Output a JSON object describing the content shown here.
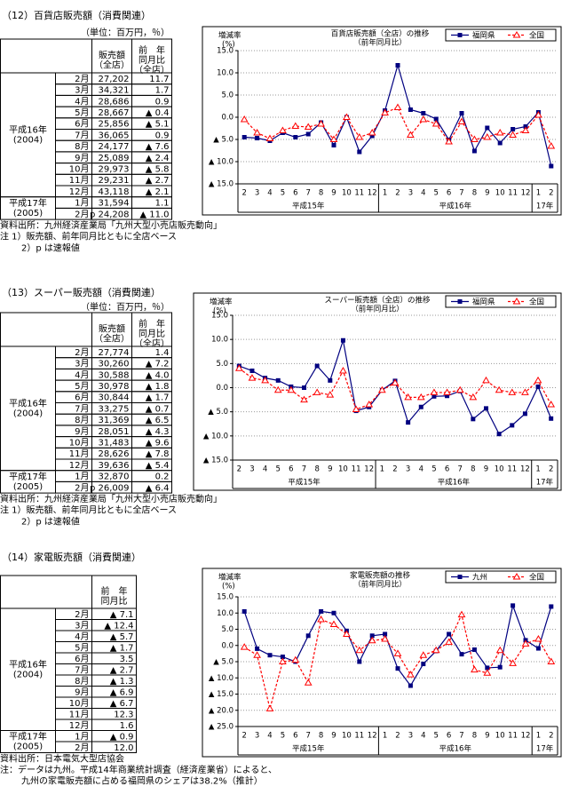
{
  "sections": [
    {
      "title": "（12）百貨店販売額（消費関連）",
      "unit": "（単位：百万円，％）",
      "headers": [
        [
          "販売額",
          "（全店）"
        ],
        [
          "前　年",
          "同月比",
          "（全店）"
        ]
      ],
      "groups": [
        {
          "era": [
            "平成16年",
            "(2004)"
          ],
          "rows": [
            [
              "2月",
              "27,202",
              "11.7"
            ],
            [
              "3月",
              "34,321",
              "1.7"
            ],
            [
              "4月",
              "28,686",
              "0.9"
            ],
            [
              "5月",
              "28,667",
              "▲ 0.4"
            ],
            [
              "6月",
              "25,856",
              "▲ 5.1"
            ],
            [
              "7月",
              "36,065",
              "0.9"
            ],
            [
              "8月",
              "24,177",
              "▲ 7.6"
            ],
            [
              "9月",
              "25,089",
              "▲ 2.4"
            ],
            [
              "10月",
              "29,973",
              "▲ 5.8"
            ],
            [
              "11月",
              "29,231",
              "▲ 2.7"
            ],
            [
              "12月",
              "43,118",
              "▲ 2.1"
            ]
          ]
        },
        {
          "era": [
            "平成17年",
            "(2005)"
          ],
          "rows": [
            [
              "1月",
              "31,594",
              "1.1"
            ],
            [
              "2月",
              "p 24,208",
              "▲ 11.0"
            ]
          ]
        }
      ],
      "notes": [
        "資料出所：九州経済産業局「九州大型小売店販売動向」",
        "注 1）販売額、前年同月比ともに全店ベース",
        "2）p は速報値"
      ]
    },
    {
      "title": "（13）スーパー販売額（消費関連）",
      "unit": "（単位：百万円，％）",
      "headers": [
        [
          "販売額",
          "（全店）"
        ],
        [
          "前　年",
          "同月比",
          "（全店）"
        ]
      ],
      "groups": [
        {
          "era": [
            "平成16年",
            "(2004)"
          ],
          "rows": [
            [
              "2月",
              "27,774",
              "1.4"
            ],
            [
              "3月",
              "30,260",
              "▲ 7.2"
            ],
            [
              "4月",
              "30,588",
              "▲ 4.0"
            ],
            [
              "5月",
              "30,978",
              "▲ 1.8"
            ],
            [
              "6月",
              "30,844",
              "▲ 1.7"
            ],
            [
              "7月",
              "33,275",
              "▲ 0.7"
            ],
            [
              "8月",
              "31,369",
              "▲ 6.5"
            ],
            [
              "9月",
              "28,051",
              "▲ 4.3"
            ],
            [
              "10月",
              "31,483",
              "▲ 9.6"
            ],
            [
              "11月",
              "28,626",
              "▲ 7.8"
            ],
            [
              "12月",
              "39,636",
              "▲ 5.4"
            ]
          ]
        },
        {
          "era": [
            "平成17年",
            "(2005)"
          ],
          "rows": [
            [
              "1月",
              "32,870",
              "0.2"
            ],
            [
              "2月",
              "p 26,009",
              "▲ 6.4"
            ]
          ]
        }
      ],
      "notes": [
        "資料出所：九州経済産業局「九州大型小売店販売動向」",
        "注 1）販売額、前年同月比ともに全店ベース",
        "2）p は速報値"
      ]
    },
    {
      "title": "（14）家電販売額（消費関連）",
      "headers": [
        [
          "前　年",
          "同月比"
        ]
      ],
      "groups": [
        {
          "era": [
            "平成16年",
            "(2004)"
          ],
          "rows": [
            [
              "2月",
              "▲ 7.1"
            ],
            [
              "3月",
              "▲ 12.4"
            ],
            [
              "4月",
              "▲ 5.7"
            ],
            [
              "5月",
              "▲ 1.7"
            ],
            [
              "6月",
              "3.5"
            ],
            [
              "7月",
              "▲ 2.7"
            ],
            [
              "8月",
              "▲ 1.3"
            ],
            [
              "9月",
              "▲ 6.9"
            ],
            [
              "10月",
              "▲ 6.7"
            ],
            [
              "11月",
              "12.3"
            ],
            [
              "12月",
              "1.6"
            ]
          ]
        },
        {
          "era": [
            "平成17年",
            "(2005)"
          ],
          "rows": [
            [
              "1月",
              "▲ 0.9"
            ],
            [
              "2月",
              "12.0"
            ]
          ]
        }
      ],
      "notes": [
        "資料出所：日本電気大型店協会",
        "注：データは九州。平成14年商業統計調査（経済産業省）によると、",
        "九州の家電販売額に占める福岡県のシェアは38.2%（推計）"
      ]
    }
  ],
  "chart_data": [
    {
      "type": "line",
      "title": "百貨店販売額（全店）の推移",
      "subtitle": "（前年同月比）",
      "y_label": [
        "増減率",
        "(%)"
      ],
      "categories": [
        "2",
        "3",
        "4",
        "5",
        "6",
        "7",
        "8",
        "9",
        "10",
        "11",
        "12",
        "1",
        "2",
        "3",
        "4",
        "5",
        "6",
        "7",
        "8",
        "9",
        "10",
        "11",
        "12",
        "1",
        "2"
      ],
      "x_groups": [
        "平成15年",
        "平成16年",
        "17年"
      ],
      "series": [
        {
          "name": "福岡県",
          "color": "#000080",
          "marker": "square",
          "line_style": "solid",
          "values": [
            -4.5,
            -4.7,
            -5.3,
            -3.5,
            -4.5,
            -3.8,
            -1.2,
            -6.3,
            0.0,
            -7.8,
            -4.2,
            1.5,
            11.7,
            1.7,
            0.9,
            -0.4,
            -5.1,
            0.9,
            -7.6,
            -2.4,
            -5.8,
            -2.7,
            -2.1,
            1.1,
            -11.0
          ]
        },
        {
          "name": "全国",
          "color": "#ff0000",
          "marker": "triangle",
          "line_style": "dashed",
          "values": [
            -0.5,
            -3.5,
            -4.8,
            -3.0,
            -2.0,
            -2.2,
            -1.5,
            -5.0,
            0.0,
            -4.5,
            -3.5,
            1.0,
            2.2,
            -4.0,
            -0.5,
            -1.5,
            -5.5,
            -1.0,
            -5.0,
            -4.5,
            -3.5,
            -4.0,
            -3.0,
            0.5,
            -6.5
          ]
        }
      ],
      "ylim": [
        -15,
        15
      ],
      "yticks": [
        {
          "value": 15,
          "label": "15.0"
        },
        {
          "value": 10,
          "label": "10.0"
        },
        {
          "value": 5,
          "label": "5.0"
        },
        {
          "value": 0,
          "label": "0.0"
        },
        {
          "value": -5,
          "label": "▲ 5.0"
        },
        {
          "value": -10,
          "label": "▲ 10.0"
        },
        {
          "value": -15,
          "label": "▲ 15.0"
        }
      ],
      "grid": true,
      "legend": "upper right"
    },
    {
      "type": "line",
      "title": "スーパー販売額（全店）の推移",
      "subtitle": "（前年同月比）",
      "y_label": [
        "増減率",
        "(%)"
      ],
      "categories": [
        "2",
        "3",
        "4",
        "5",
        "6",
        "7",
        "8",
        "9",
        "10",
        "11",
        "12",
        "1",
        "2",
        "3",
        "4",
        "5",
        "6",
        "7",
        "8",
        "9",
        "10",
        "11",
        "12",
        "1",
        "2"
      ],
      "x_groups": [
        "平成15年",
        "平成16年",
        "17年"
      ],
      "series": [
        {
          "name": "福岡県",
          "color": "#000080",
          "marker": "square",
          "line_style": "solid",
          "values": [
            4.5,
            3.5,
            2.0,
            1.5,
            0.2,
            0.0,
            4.5,
            1.5,
            9.8,
            -4.8,
            -4.0,
            -0.5,
            1.4,
            -7.2,
            -4.0,
            -1.8,
            -1.7,
            -0.7,
            -6.5,
            -4.3,
            -9.6,
            -7.8,
            -5.4,
            0.2,
            -6.4
          ]
        },
        {
          "name": "全国",
          "color": "#ff0000",
          "marker": "triangle",
          "line_style": "dashed",
          "values": [
            4.0,
            2.0,
            1.5,
            -0.5,
            -0.5,
            -2.5,
            -1.0,
            -1.5,
            3.5,
            -4.5,
            -3.5,
            -0.5,
            1.0,
            -2.0,
            -2.0,
            -1.0,
            -1.0,
            -0.5,
            -2.0,
            1.5,
            -0.5,
            -1.0,
            -1.0,
            1.5,
            -3.5
          ]
        }
      ],
      "ylim": [
        -15,
        15
      ],
      "yticks": [
        {
          "value": 15,
          "label": "15.0"
        },
        {
          "value": 10,
          "label": "10.0"
        },
        {
          "value": 5,
          "label": "5.0"
        },
        {
          "value": 0,
          "label": "0.0"
        },
        {
          "value": -5,
          "label": "▲ 5.0"
        },
        {
          "value": -10,
          "label": "▲ 10.0"
        },
        {
          "value": -15,
          "label": "▲ 15.0"
        }
      ],
      "grid": true,
      "legend": "upper right"
    },
    {
      "type": "line",
      "title": "家電販売額の推移",
      "subtitle": "（前年同月比）",
      "y_label": [
        "増減率",
        "(%)"
      ],
      "categories": [
        "2",
        "3",
        "4",
        "5",
        "6",
        "7",
        "8",
        "9",
        "10",
        "11",
        "12",
        "1",
        "2",
        "3",
        "4",
        "5",
        "6",
        "7",
        "8",
        "9",
        "10",
        "11",
        "12",
        "1",
        "2"
      ],
      "x_groups": [
        "平成15年",
        "平成16年",
        "17年"
      ],
      "series": [
        {
          "name": "九州",
          "color": "#000080",
          "marker": "square",
          "line_style": "solid",
          "values": [
            10.5,
            -1.0,
            -3.0,
            -3.5,
            -5.0,
            3.0,
            10.5,
            10.0,
            4.5,
            -5.0,
            3.0,
            3.5,
            -7.1,
            -12.4,
            -5.7,
            -1.7,
            3.5,
            -2.7,
            -1.3,
            -6.9,
            -6.7,
            12.3,
            1.6,
            -0.9,
            12.0
          ]
        },
        {
          "name": "全国",
          "color": "#ff0000",
          "marker": "triangle",
          "line_style": "dashed",
          "values": [
            -0.5,
            -3.0,
            -19.5,
            -5.0,
            -4.5,
            -11.5,
            8.0,
            6.5,
            3.5,
            -1.5,
            1.5,
            2.0,
            -2.5,
            -9.0,
            -3.0,
            -1.5,
            1.0,
            9.5,
            -7.5,
            -8.5,
            -1.5,
            -5.5,
            0.5,
            2.0,
            -5.0
          ]
        }
      ],
      "ylim": [
        -25,
        15
      ],
      "yticks": [
        {
          "value": 15,
          "label": "15.0"
        },
        {
          "value": 10,
          "label": "10.0"
        },
        {
          "value": 5,
          "label": "5.0"
        },
        {
          "value": 0,
          "label": "0.0"
        },
        {
          "value": -5,
          "label": "▲ 5.0"
        },
        {
          "value": -10,
          "label": "▲ 10.0"
        },
        {
          "value": -15,
          "label": "▲ 15.0"
        },
        {
          "value": -20,
          "label": "▲ 20.0"
        },
        {
          "value": -25,
          "label": "▲ 25.0"
        }
      ],
      "grid": true,
      "legend": "upper right"
    }
  ]
}
